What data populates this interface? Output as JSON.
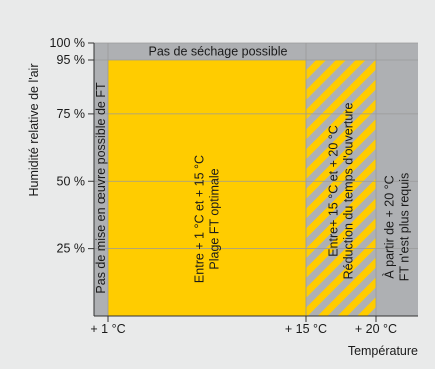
{
  "chart_data": {
    "type": "area",
    "title": "",
    "xlabel": "Température",
    "ylabel": "Humidité relative de l'air",
    "xlim": [
      0,
      22
    ],
    "ylim": [
      0,
      100
    ],
    "x_ticks": [
      {
        "value": 1,
        "label": "+ 1 °C"
      },
      {
        "value": 15,
        "label": "+ 15 °C"
      },
      {
        "value": 20,
        "label": "+ 20 °C"
      }
    ],
    "y_ticks": [
      {
        "value": 25,
        "label": "25 %"
      },
      {
        "value": 50,
        "label": "50 %"
      },
      {
        "value": 75,
        "label": "75 %"
      },
      {
        "value": 95,
        "label": "95 %"
      },
      {
        "value": 100,
        "label": "100 %"
      }
    ],
    "regions": [
      {
        "id": "band-top",
        "x": [
          0,
          22
        ],
        "y": [
          95,
          100
        ],
        "fill": "#aeb0b3",
        "pattern": "solid",
        "lines": [
          "Pas de séchage possible"
        ],
        "orientation": "horizontal"
      },
      {
        "id": "col-left",
        "x": [
          0,
          1
        ],
        "y": [
          0,
          95
        ],
        "fill": "#aeb0b3",
        "pattern": "solid",
        "lines": [
          "Pas de mise en œuvre possible de FT"
        ],
        "orientation": "vertical"
      },
      {
        "id": "col-optimal",
        "x": [
          1,
          15
        ],
        "y": [
          0,
          95
        ],
        "fill": "#ffcc00",
        "pattern": "solid",
        "lines": [
          "Entre + 1 °C et + 15 °C",
          "Plage FT optimale"
        ],
        "orientation": "vertical"
      },
      {
        "id": "col-reduced",
        "x": [
          15,
          20
        ],
        "y": [
          0,
          95
        ],
        "fill": "#ffcc00",
        "pattern": "stripes",
        "stripe_color": "#aeb0b3",
        "lines": [
          "Entre+ 15 °C et + 20 °C",
          "Réduction du temps d'ouverture"
        ],
        "orientation": "vertical"
      },
      {
        "id": "col-right",
        "x": [
          20,
          22
        ],
        "y": [
          0,
          95
        ],
        "fill": "#aeb0b3",
        "pattern": "solid",
        "lines": [
          "À partir de + 20 °C",
          "FT n'est plus requis"
        ],
        "orientation": "vertical"
      }
    ],
    "grid": true,
    "legend": "none",
    "colors": {
      "plot_bg": "#ffffff",
      "grid": "#9a9a9a",
      "axis": "#333333",
      "page_bg": "#e9eaea"
    }
  }
}
